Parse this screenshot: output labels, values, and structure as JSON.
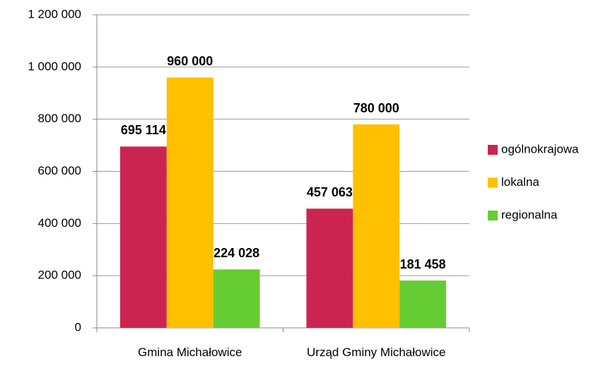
{
  "chart_data": {
    "type": "bar",
    "categories": [
      "Gmina Michałowice",
      "Urząd Gminy Michałowice"
    ],
    "series": [
      {
        "name": "ogólnokrajowa",
        "color": "#cc2450",
        "values": [
          695114,
          457063
        ],
        "value_labels": [
          "695 114",
          "457 063"
        ]
      },
      {
        "name": "lokalna",
        "color": "#ffc000",
        "values": [
          960000,
          780000
        ],
        "value_labels": [
          "960 000",
          "780 000"
        ]
      },
      {
        "name": "regionalna",
        "color": "#66cc33",
        "values": [
          224028,
          181458
        ],
        "value_labels": [
          "224 028",
          "181 458"
        ]
      }
    ],
    "ylim": [
      0,
      1200000
    ],
    "yticks": [
      0,
      {
        "value": 200000,
        "label": "200 000"
      },
      {
        "value": 400000,
        "label": "400 000"
      },
      {
        "value": 600000,
        "label": "600 000"
      },
      {
        "value": 800000,
        "label": "800 000"
      },
      {
        "value": 1000000,
        "label": "1 000 000"
      },
      {
        "value": 1200000,
        "label": "1 200 000"
      }
    ],
    "grid": true,
    "legend": "right"
  }
}
